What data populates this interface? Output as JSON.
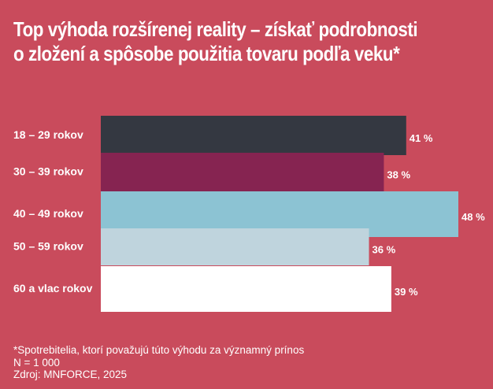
{
  "chart_data": {
    "type": "bar",
    "orientation": "horizontal",
    "title": "Top výhoda rozšírenej reality - získať podrobnosti o zložení a spôsobe použitia tovaru podľa veku*",
    "title_lines": [
      "Top výhoda rozšírenej reality – získať podrobnosti",
      "o zložení a spôsobe použitia tovaru podľa veku*"
    ],
    "categories": [
      "18 – 29 rokov",
      "30 – 39 rokov",
      "40 – 49 rokov",
      "50 – 59 rokov",
      "60 a vlac rokov"
    ],
    "values": [
      41,
      38,
      48,
      36,
      39
    ],
    "value_labels": [
      "41 %",
      "38 %",
      "48 %",
      "36 %",
      "39 %"
    ],
    "colors": [
      "#343841",
      "#862451",
      "#8cc3d3",
      "#bfd4dd",
      "#ffffff"
    ],
    "xlim": [
      0,
      48
    ],
    "unit": "%",
    "grid": false
  },
  "footnotes": [
    "*Spotrebitelia, ktorí považujú túto výhodu za významný prínos",
    "N = 1 000",
    "Zdroj: MNFORCE, 2025"
  ],
  "background": "#c94b5c"
}
